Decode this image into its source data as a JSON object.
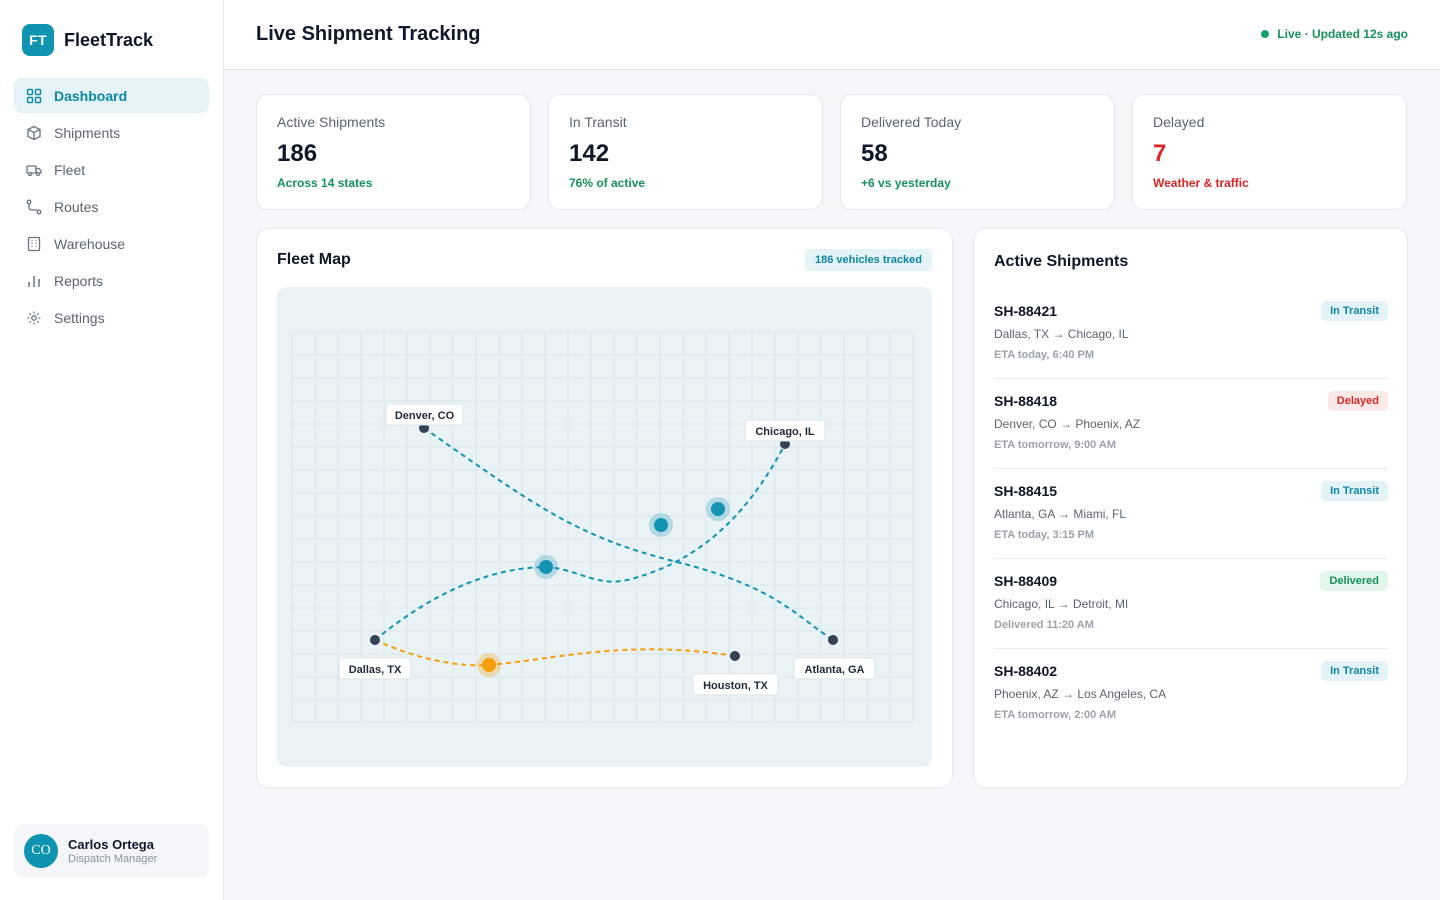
{
  "brand": {
    "logo": "FT",
    "name": "FleetTrack",
    "accent": "#0e93b0"
  },
  "sidebar": {
    "items": [
      {
        "label": "Dashboard",
        "icon": "grid-icon",
        "active": true
      },
      {
        "label": "Shipments",
        "icon": "box-icon"
      },
      {
        "label": "Fleet",
        "icon": "truck-icon"
      },
      {
        "label": "Routes",
        "icon": "route-icon"
      },
      {
        "label": "Warehouse",
        "icon": "building-icon"
      },
      {
        "label": "Reports",
        "icon": "bar-chart-icon"
      },
      {
        "label": "Settings",
        "icon": "gear-icon"
      }
    ],
    "user": {
      "initials": "CO",
      "name": "Carlos Ortega",
      "role": "Dispatch Manager"
    }
  },
  "header": {
    "title": "Live Shipment Tracking",
    "status": "Live · Updated 12s ago"
  },
  "stats": [
    {
      "label": "Active Shipments",
      "value": "186",
      "note": "Across 14 states",
      "tone": "green"
    },
    {
      "label": "In Transit",
      "value": "142",
      "note": "76% of active",
      "tone": "green"
    },
    {
      "label": "Delivered Today",
      "value": "58",
      "note": "+6 vs yesterday",
      "tone": "green"
    },
    {
      "label": "Delayed",
      "value": "7",
      "note": "Weather & traffic",
      "tone": "red"
    }
  ],
  "map": {
    "title": "Fleet Map",
    "tracked": "186 vehicles tracked",
    "cities": {
      "denver": "Denver, CO",
      "chicago": "Chicago, IL",
      "dallas": "Dallas, TX",
      "houston": "Houston, TX",
      "atlanta": "Atlanta, GA"
    },
    "colors": {
      "route": "#1394b3",
      "delayed_route": "#f59e0b",
      "city_dot": "#334155"
    }
  },
  "shipments": {
    "title": "Active Shipments",
    "items": [
      {
        "id": "SH-88421",
        "route": "Dallas, TX → Chicago, IL",
        "eta": "ETA today, 6:40 PM",
        "status": "In Transit",
        "kind": "transit"
      },
      {
        "id": "SH-88418",
        "route": "Denver, CO → Phoenix, AZ",
        "eta": "ETA tomorrow, 9:00 AM",
        "status": "Delayed",
        "kind": "delayed"
      },
      {
        "id": "SH-88415",
        "route": "Atlanta, GA → Miami, FL",
        "eta": "ETA today, 3:15 PM",
        "status": "In Transit",
        "kind": "transit"
      },
      {
        "id": "SH-88409",
        "route": "Chicago, IL → Detroit, MI",
        "eta": "Delivered 11:20 AM",
        "status": "Delivered",
        "kind": "delivered"
      },
      {
        "id": "SH-88402",
        "route": "Phoenix, AZ → Los Angeles, CA",
        "eta": "ETA tomorrow, 2:00 AM",
        "status": "In Transit",
        "kind": "transit"
      }
    ]
  }
}
